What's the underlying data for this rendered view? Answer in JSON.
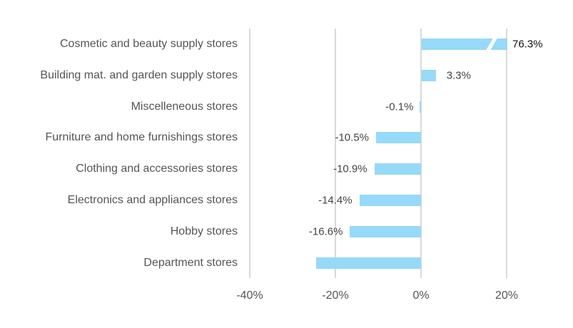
{
  "chart_data": {
    "type": "bar",
    "orientation": "horizontal",
    "title": "",
    "xlabel": "",
    "ylabel": "",
    "categories": [
      "Cosmetic and beauty supply stores",
      "Building mat. and garden supply stores",
      "Miscelleneous stores",
      "Furniture and home furnishings stores",
      "Clothing and accessories stores",
      "Electronics and appliances stores",
      "Hobby stores",
      "Department stores"
    ],
    "values": [
      76.3,
      3.3,
      -0.1,
      -10.5,
      -10.9,
      -14.4,
      -16.6,
      -24.5
    ],
    "data_labels": [
      "76.3%",
      "3.3%",
      "-0.1%",
      "-10.5%",
      "-10.9%",
      "-14.4%",
      "-16.6%",
      ""
    ],
    "xlim": [
      -40,
      30
    ],
    "x_ticks": [
      "-40%",
      "-20%",
      "0%",
      "20%"
    ],
    "grid": "vertical",
    "bar_color": "#97d9f8",
    "axis_break": "Cosmetic bar truncated at ~20% (broken bar)"
  }
}
